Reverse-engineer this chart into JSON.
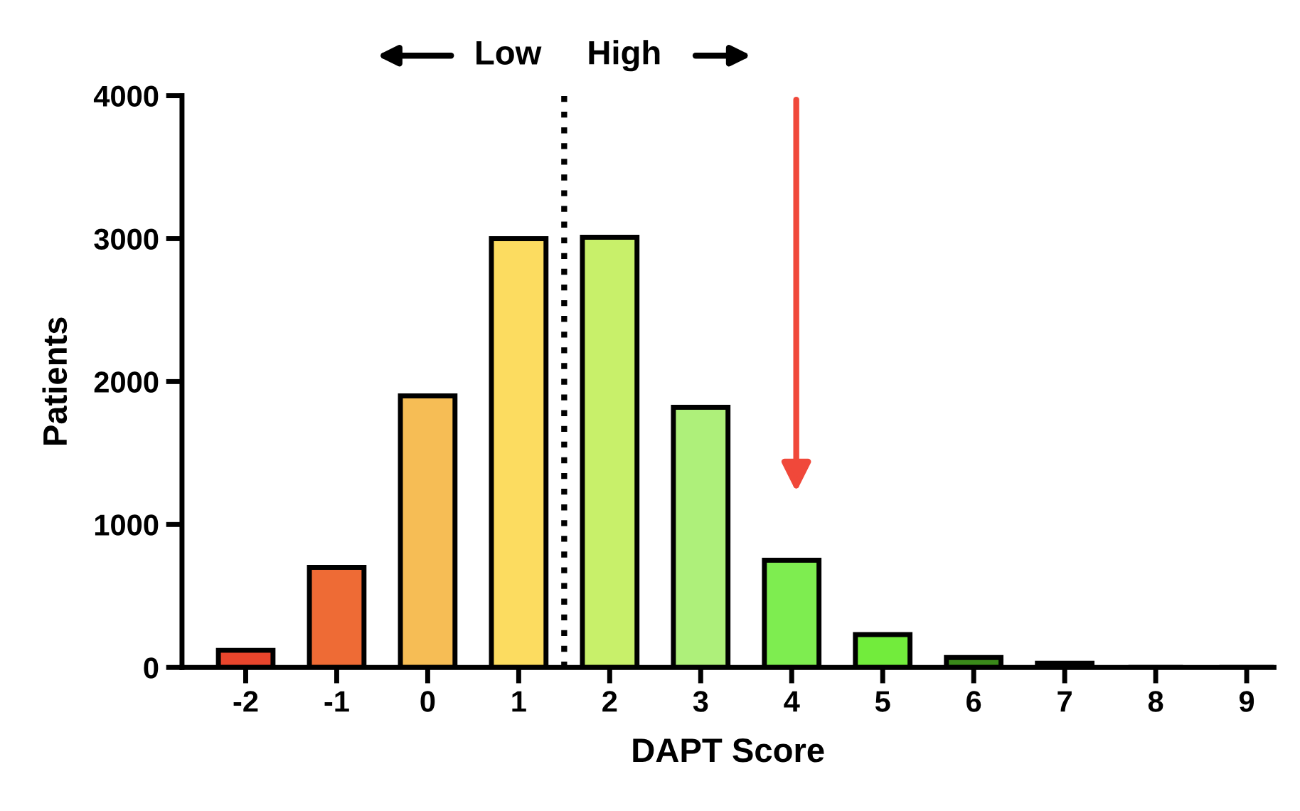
{
  "chart_data": {
    "type": "bar",
    "xlabel": "DAPT Score",
    "ylabel": "Patients",
    "x": [
      -2,
      -1,
      0,
      1,
      2,
      3,
      4,
      5,
      6,
      7,
      8,
      9
    ],
    "values": [
      120,
      700,
      1900,
      3000,
      3010,
      1820,
      750,
      230,
      70,
      30,
      0,
      0
    ],
    "colors": [
      "#e8452c",
      "#ee6b35",
      "#f6bd55",
      "#fcdc60",
      "#c8f06a",
      "#aef07a",
      "#7eed50",
      "#72ec3c",
      "#3a8a1a",
      "#558c30",
      "#ffffff",
      "#ffffff"
    ],
    "xlim": [
      -2.7,
      9.3
    ],
    "xticks": [
      -2,
      -1,
      0,
      1,
      2,
      3,
      4,
      5,
      6,
      7,
      8,
      9
    ],
    "ylim": [
      0,
      4000
    ],
    "yticks": [
      0,
      1000,
      2000,
      3000,
      4000
    ],
    "ref_lines": [
      {
        "axis": "x",
        "value": 1.5,
        "line_style": "dotted",
        "color": "#000000"
      }
    ],
    "annotations": [
      "Low",
      "High"
    ],
    "grid": false,
    "legend": false
  }
}
